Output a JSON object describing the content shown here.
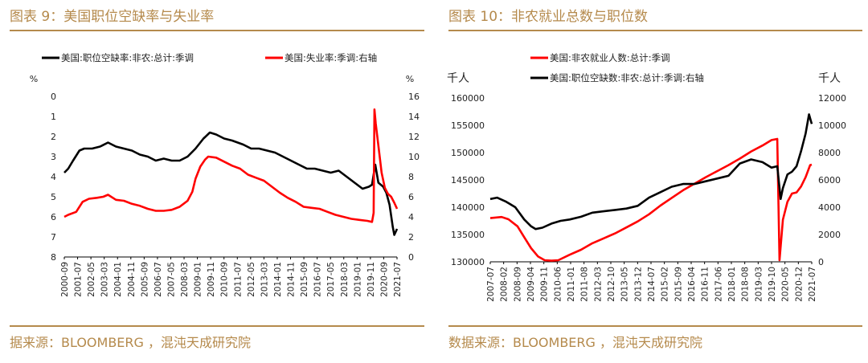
{
  "colors": {
    "accent": "#b58a4c",
    "series_black": "#000000",
    "series_red": "#ff0000"
  },
  "left": {
    "title": "图表 9：美国职位空缺率与失业率",
    "source": "据来源：BLOOMBERG ，混沌天成研究院",
    "chart_data": {
      "type": "line",
      "legend_placement": "top",
      "grid": false,
      "left_unit": "%",
      "right_unit": "%",
      "left_axis": {
        "ylim": [
          0,
          8
        ],
        "reversed": true,
        "ticks": [
          "0",
          "1",
          "2",
          "3",
          "4",
          "5",
          "6",
          "7",
          "8"
        ]
      },
      "right_axis": {
        "ylim": [
          0,
          16
        ],
        "reversed": false,
        "ticks": [
          "0",
          "2",
          "4",
          "6",
          "8",
          "10",
          "12",
          "14",
          "16"
        ]
      },
      "x_range": [
        2000.75,
        2021.67
      ],
      "x_ticks": [
        "2000-09",
        "2001-07",
        "2002-05",
        "2003-03",
        "2004-01",
        "2004-11",
        "2005-09",
        "2006-07",
        "2007-05",
        "2008-03",
        "2009-01",
        "2009-11",
        "2010-09",
        "2011-07",
        "2012-05",
        "2013-03",
        "2014-01",
        "2014-11",
        "2015-09",
        "2016-07",
        "2017-05",
        "2018-03",
        "2019-01",
        "2019-11",
        "2020-09",
        "2021-07"
      ],
      "series": [
        {
          "name": "美国:职位空缺率:非农:总计:季调",
          "axis": "left",
          "color": "#000000",
          "points": [
            [
              2000.75,
              3.8
            ],
            [
              2001.0,
              3.6
            ],
            [
              2001.3,
              3.2
            ],
            [
              2001.7,
              2.7
            ],
            [
              2002.0,
              2.6
            ],
            [
              2002.5,
              2.6
            ],
            [
              2003.0,
              2.5
            ],
            [
              2003.5,
              2.3
            ],
            [
              2004.0,
              2.5
            ],
            [
              2004.5,
              2.6
            ],
            [
              2005.0,
              2.7
            ],
            [
              2005.5,
              2.9
            ],
            [
              2006.0,
              3.0
            ],
            [
              2006.5,
              3.2
            ],
            [
              2007.0,
              3.1
            ],
            [
              2007.5,
              3.2
            ],
            [
              2008.0,
              3.2
            ],
            [
              2008.5,
              3.0
            ],
            [
              2009.0,
              2.6
            ],
            [
              2009.5,
              2.1
            ],
            [
              2009.9,
              1.8
            ],
            [
              2010.3,
              1.9
            ],
            [
              2010.8,
              2.1
            ],
            [
              2011.3,
              2.2
            ],
            [
              2012.0,
              2.4
            ],
            [
              2012.5,
              2.6
            ],
            [
              2013.0,
              2.6
            ],
            [
              2013.5,
              2.7
            ],
            [
              2014.0,
              2.8
            ],
            [
              2014.5,
              3.0
            ],
            [
              2015.0,
              3.2
            ],
            [
              2015.5,
              3.4
            ],
            [
              2016.0,
              3.6
            ],
            [
              2016.5,
              3.6
            ],
            [
              2017.0,
              3.7
            ],
            [
              2017.5,
              3.8
            ],
            [
              2018.0,
              3.7
            ],
            [
              2018.5,
              4.0
            ],
            [
              2019.0,
              4.3
            ],
            [
              2019.5,
              4.6
            ],
            [
              2019.9,
              4.5
            ],
            [
              2020.1,
              4.4
            ],
            [
              2020.3,
              3.4
            ],
            [
              2020.5,
              4.3
            ],
            [
              2020.8,
              4.5
            ],
            [
              2021.0,
              4.8
            ],
            [
              2021.2,
              5.4
            ],
            [
              2021.4,
              6.5
            ],
            [
              2021.5,
              6.9
            ],
            [
              2021.67,
              6.6
            ]
          ]
        },
        {
          "name": "美国:失业率:季调:右轴",
          "axis": "right",
          "color": "#ff0000",
          "points": [
            [
              2000.75,
              4.0
            ],
            [
              2001.0,
              4.2
            ],
            [
              2001.5,
              4.5
            ],
            [
              2001.9,
              5.5
            ],
            [
              2002.3,
              5.8
            ],
            [
              2002.8,
              5.9
            ],
            [
              2003.2,
              6.0
            ],
            [
              2003.5,
              6.2
            ],
            [
              2004.0,
              5.7
            ],
            [
              2004.5,
              5.6
            ],
            [
              2005.0,
              5.3
            ],
            [
              2005.5,
              5.1
            ],
            [
              2006.0,
              4.8
            ],
            [
              2006.5,
              4.6
            ],
            [
              2007.0,
              4.6
            ],
            [
              2007.5,
              4.7
            ],
            [
              2008.0,
              5.0
            ],
            [
              2008.5,
              5.6
            ],
            [
              2008.8,
              6.5
            ],
            [
              2009.0,
              7.8
            ],
            [
              2009.3,
              9.0
            ],
            [
              2009.6,
              9.7
            ],
            [
              2009.8,
              10.0
            ],
            [
              2010.3,
              9.9
            ],
            [
              2010.8,
              9.5
            ],
            [
              2011.3,
              9.1
            ],
            [
              2011.8,
              8.8
            ],
            [
              2012.3,
              8.2
            ],
            [
              2012.8,
              7.9
            ],
            [
              2013.3,
              7.6
            ],
            [
              2013.8,
              7.0
            ],
            [
              2014.3,
              6.4
            ],
            [
              2014.8,
              5.9
            ],
            [
              2015.3,
              5.5
            ],
            [
              2015.8,
              5.0
            ],
            [
              2016.3,
              4.9
            ],
            [
              2016.8,
              4.8
            ],
            [
              2017.3,
              4.5
            ],
            [
              2017.8,
              4.2
            ],
            [
              2018.3,
              4.0
            ],
            [
              2018.8,
              3.8
            ],
            [
              2019.3,
              3.7
            ],
            [
              2019.8,
              3.6
            ],
            [
              2020.1,
              3.5
            ],
            [
              2020.2,
              4.4
            ],
            [
              2020.25,
              14.7
            ],
            [
              2020.33,
              13.3
            ],
            [
              2020.5,
              11.1
            ],
            [
              2020.7,
              8.4
            ],
            [
              2020.9,
              6.9
            ],
            [
              2021.1,
              6.3
            ],
            [
              2021.3,
              6.0
            ],
            [
              2021.5,
              5.4
            ],
            [
              2021.67,
              4.8
            ]
          ]
        }
      ]
    }
  },
  "right": {
    "title": "图表 10：非农就业总数与职位数",
    "source": "数据来源：BLOOMBERG ，混沌天成研究院",
    "chart_data": {
      "type": "line",
      "legend_placement": "top",
      "grid": false,
      "left_unit": "千人",
      "right_unit": "千人",
      "left_axis": {
        "ylim": [
          130000,
          160000
        ],
        "ticks": [
          "130000",
          "135000",
          "140000",
          "145000",
          "150000",
          "155000",
          "160000"
        ]
      },
      "right_axis": {
        "ylim": [
          0,
          12000
        ],
        "ticks": [
          "0",
          "2000",
          "4000",
          "6000",
          "8000",
          "10000",
          "12000"
        ]
      },
      "x_range": [
        2007.5,
        2021.67
      ],
      "x_ticks": [
        "2007-07",
        "2008-02",
        "2008-09",
        "2009-04",
        "2009-11",
        "2010-06",
        "2011-01",
        "2011-08",
        "2012-03",
        "2012-10",
        "2013-05",
        "2013-12",
        "2014-07",
        "2015-02",
        "2015-09",
        "2016-04",
        "2016-11",
        "2017-06",
        "2018-01",
        "2018-08",
        "2019-03",
        "2019-10",
        "2020-05",
        "2020-12",
        "2021-07"
      ],
      "series": [
        {
          "name": "美国:非农就业人数:总计:季调",
          "axis": "left",
          "color": "#ff0000",
          "points": [
            [
              2007.5,
              138000
            ],
            [
              2008.0,
              138200
            ],
            [
              2008.3,
              137800
            ],
            [
              2008.7,
              136500
            ],
            [
              2009.0,
              134500
            ],
            [
              2009.3,
              132500
            ],
            [
              2009.6,
              131000
            ],
            [
              2009.9,
              130300
            ],
            [
              2010.2,
              130200
            ],
            [
              2010.5,
              130300
            ],
            [
              2011.0,
              131300
            ],
            [
              2011.5,
              132200
            ],
            [
              2012.0,
              133400
            ],
            [
              2012.5,
              134300
            ],
            [
              2013.0,
              135200
            ],
            [
              2013.5,
              136300
            ],
            [
              2014.0,
              137400
            ],
            [
              2014.5,
              138700
            ],
            [
              2015.0,
              140300
            ],
            [
              2015.5,
              141700
            ],
            [
              2016.0,
              143100
            ],
            [
              2016.5,
              144300
            ],
            [
              2017.0,
              145500
            ],
            [
              2017.5,
              146600
            ],
            [
              2018.0,
              147700
            ],
            [
              2018.5,
              148900
            ],
            [
              2019.0,
              150200
            ],
            [
              2019.5,
              151300
            ],
            [
              2019.9,
              152300
            ],
            [
              2020.15,
              152500
            ],
            [
              2020.25,
              130300
            ],
            [
              2020.4,
              137700
            ],
            [
              2020.6,
              141000
            ],
            [
              2020.8,
              142500
            ],
            [
              2021.0,
              142700
            ],
            [
              2021.2,
              143800
            ],
            [
              2021.4,
              145500
            ],
            [
              2021.6,
              147700
            ],
            [
              2021.67,
              147800
            ]
          ]
        },
        {
          "name": "美国:职位空缺数:非农:总计:季调:右轴",
          "axis": "right",
          "color": "#000000",
          "points": [
            [
              2007.5,
              4600
            ],
            [
              2007.8,
              4700
            ],
            [
              2008.2,
              4400
            ],
            [
              2008.6,
              4000
            ],
            [
              2009.0,
              3100
            ],
            [
              2009.3,
              2600
            ],
            [
              2009.5,
              2400
            ],
            [
              2009.8,
              2500
            ],
            [
              2010.2,
              2800
            ],
            [
              2010.6,
              3000
            ],
            [
              2011.0,
              3100
            ],
            [
              2011.5,
              3300
            ],
            [
              2012.0,
              3600
            ],
            [
              2012.5,
              3700
            ],
            [
              2013.0,
              3800
            ],
            [
              2013.5,
              3900
            ],
            [
              2014.0,
              4100
            ],
            [
              2014.5,
              4700
            ],
            [
              2015.0,
              5100
            ],
            [
              2015.5,
              5500
            ],
            [
              2016.0,
              5700
            ],
            [
              2016.5,
              5700
            ],
            [
              2017.0,
              5900
            ],
            [
              2017.5,
              6100
            ],
            [
              2018.0,
              6300
            ],
            [
              2018.5,
              7200
            ],
            [
              2019.0,
              7500
            ],
            [
              2019.5,
              7300
            ],
            [
              2019.9,
              6900
            ],
            [
              2020.15,
              7000
            ],
            [
              2020.3,
              4600
            ],
            [
              2020.4,
              5400
            ],
            [
              2020.6,
              6400
            ],
            [
              2020.8,
              6600
            ],
            [
              2021.0,
              7000
            ],
            [
              2021.2,
              8100
            ],
            [
              2021.4,
              9400
            ],
            [
              2021.55,
              10800
            ],
            [
              2021.67,
              10100
            ]
          ]
        }
      ]
    }
  }
}
